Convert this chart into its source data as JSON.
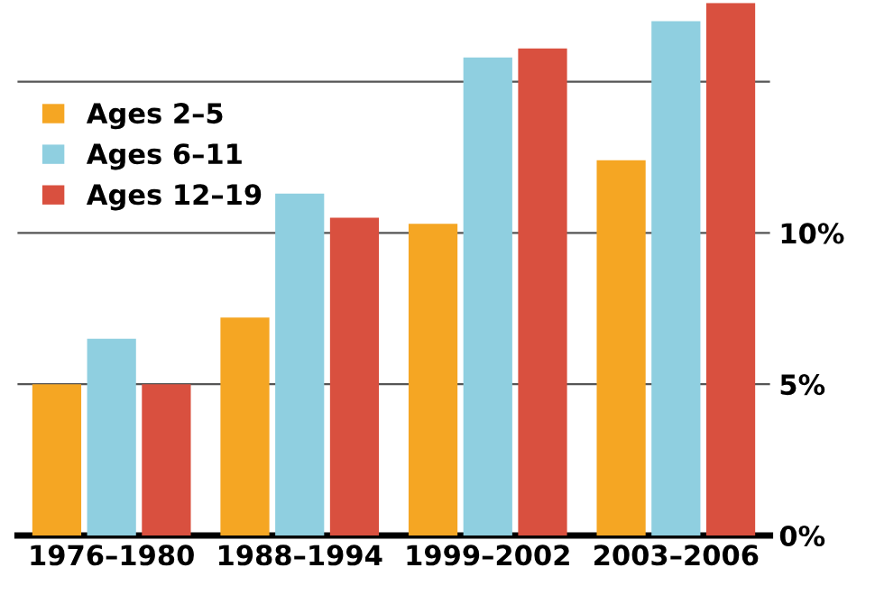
{
  "chart_data": {
    "type": "bar",
    "categories": [
      "1976–1980",
      "1988–1994",
      "1999–2002",
      "2003–2006"
    ],
    "series": [
      {
        "name": "Ages 2–5",
        "color": "#f5a623",
        "values": [
          5.0,
          7.2,
          10.3,
          12.4
        ]
      },
      {
        "name": "Ages 6–11",
        "color": "#8fcfe0",
        "values": [
          6.5,
          11.3,
          15.8,
          17.0
        ]
      },
      {
        "name": "Ages 12–19",
        "color": "#d9503f",
        "values": [
          5.0,
          10.5,
          16.1,
          17.6
        ]
      }
    ],
    "ylim": [
      0,
      17.6
    ],
    "yticks": [
      {
        "value": 0,
        "label": "0%"
      },
      {
        "value": 5,
        "label": "5%"
      },
      {
        "value": 10,
        "label": "10%"
      },
      {
        "value": 15,
        "label": null
      }
    ],
    "grid": "y",
    "legend": "top left"
  }
}
